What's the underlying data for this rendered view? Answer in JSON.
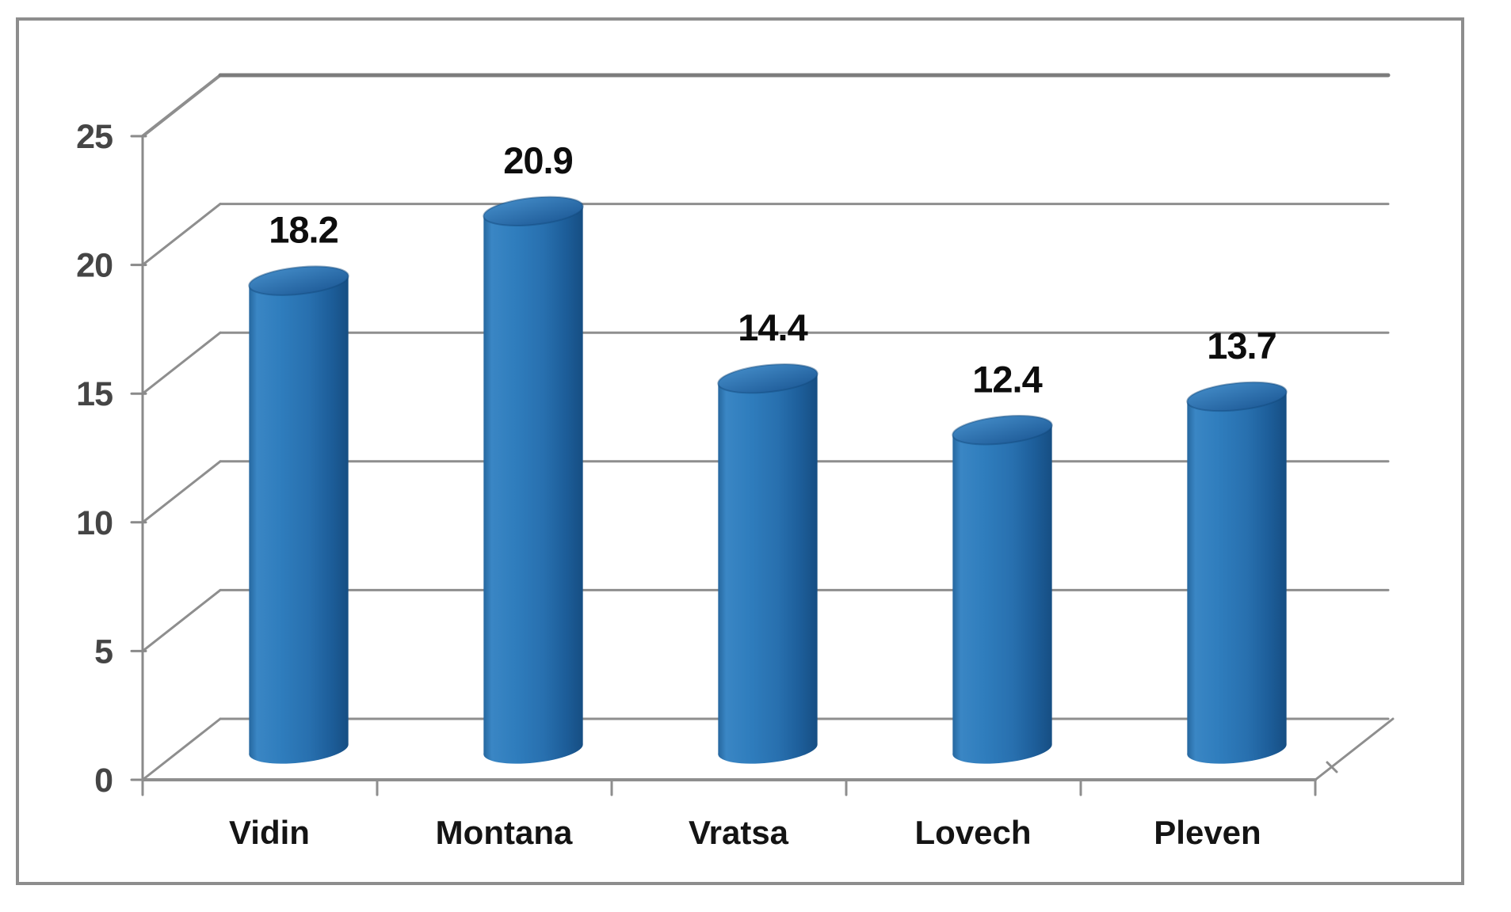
{
  "chart_data": {
    "type": "bar",
    "subtype": "cylinder-3d",
    "title": "",
    "xlabel": "",
    "ylabel": "",
    "categories": [
      "Vidin",
      "Montana",
      "Vratsa",
      "Lovech",
      "Pleven"
    ],
    "values": [
      18.2,
      20.9,
      14.4,
      12.4,
      13.7
    ],
    "data_labels": [
      "18.2",
      "20.9",
      "14.4",
      "12.4",
      "13.7"
    ],
    "ylim": [
      0,
      25
    ],
    "yticks": [
      0,
      5,
      10,
      15,
      20,
      25
    ],
    "ytick_labels": [
      "0",
      "5",
      "10",
      "15",
      "20",
      "25"
    ],
    "grid": true,
    "legend": false,
    "colors": {
      "frame": "#8d8d8d",
      "gridline": "#8e8e8e",
      "gridline_top": "#7c7c7c",
      "axis_line": "#8a8a8a",
      "axis_text": "#454545",
      "data_label_text": "#0d0d0d",
      "category_text": "#141414",
      "bar_main": "#2e79ba",
      "bar_edge_stroke": "#124a7d",
      "body_gradient": [
        [
          "0",
          "#26679f"
        ],
        [
          "0.08",
          "#3a86c4"
        ],
        [
          "0.32",
          "#2f7dbd"
        ],
        [
          "0.60",
          "#2870af"
        ],
        [
          "0.82",
          "#1d5e9a"
        ],
        [
          "1",
          "#164e83"
        ]
      ],
      "top_gradient": [
        [
          "0",
          "#4189c5"
        ],
        [
          "1",
          "#1f5c99"
        ]
      ]
    }
  }
}
